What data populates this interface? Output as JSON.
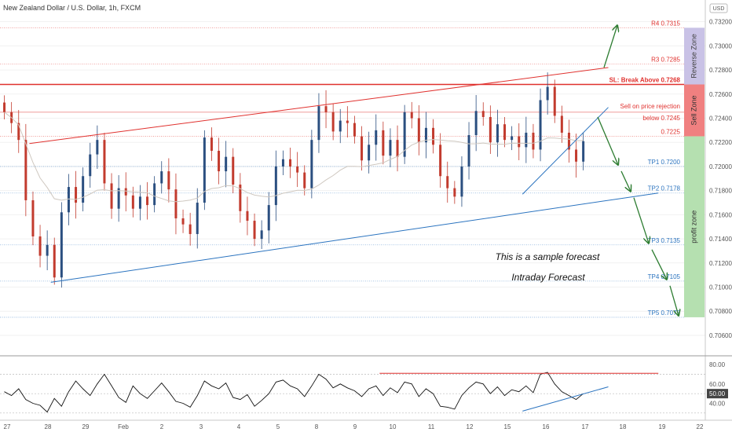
{
  "title": "New Zealand Dollar / U.S. Dollar, 1h, FXCM",
  "currency_badge": "USD",
  "colors": {
    "blue": "#2a73bf",
    "red": "#e0312e",
    "green": "#2e7d32",
    "candle_up": "#2b4f80",
    "candle_down": "#c23b2e",
    "reverse_zone": "#c9c2e6",
    "sell_zone": "#f08080",
    "profit_zone": "#b5e0b0"
  },
  "annotations": {
    "forecast_line1": "This is a sample forecast",
    "forecast_line2": "Intraday Forecast"
  },
  "zones": {
    "reverse": "Reverse Zone",
    "sell": "Sell Zone",
    "profit": "profit zone"
  },
  "chart_data": [
    {
      "type": "line",
      "series_style": "candlestick",
      "title": "New Zealand Dollar / U.S. Dollar, 1h, FXCM",
      "ylim": [
        0.7045,
        0.7338
      ],
      "yticks": [
        "0.73200",
        "0.73000",
        "0.72800",
        "0.72600",
        "0.72400",
        "0.72200",
        "0.72000",
        "0.71800",
        "0.71600",
        "0.71400",
        "0.71200",
        "0.71000",
        "0.70800",
        "0.70600"
      ],
      "x_ticks": [
        "27",
        "28",
        "29",
        "Feb",
        "2",
        "3",
        "4",
        "5",
        "8",
        "9",
        "10",
        "11",
        "12",
        "15",
        "16",
        "17",
        "18",
        "19",
        "22"
      ],
      "levels": [
        {
          "name": "R4",
          "label": "R4 0.7315",
          "value": 0.7315,
          "color": "red"
        },
        {
          "name": "R3",
          "label": "R3 0.7285",
          "value": 0.7285,
          "color": "red"
        },
        {
          "name": "SL",
          "label": "SL: Break Above 0.7268",
          "value": 0.7268,
          "color": "red",
          "bold": true
        },
        {
          "name": "Sell",
          "label_lines": [
            "Sell on price rejection",
            "below 0.7245"
          ],
          "value": 0.7245,
          "color": "red"
        },
        {
          "name": "R1",
          "label": "0.7225",
          "value": 0.7225,
          "color": "red"
        },
        {
          "name": "TP1",
          "label": "TP1 0.7200",
          "value": 0.72,
          "color": "blue"
        },
        {
          "name": "TP2",
          "label": "TP2 0.7178",
          "value": 0.7178,
          "color": "blue"
        },
        {
          "name": "TP3",
          "label": "TP3 0.7135",
          "value": 0.7135,
          "color": "blue"
        },
        {
          "name": "TP4",
          "label": "TP4 0.7105",
          "value": 0.7105,
          "color": "blue"
        },
        {
          "name": "TP5",
          "label": "TP5 0.7075",
          "value": 0.7075,
          "color": "blue"
        }
      ],
      "price_path": [
        0.7245,
        0.7236,
        0.7222,
        0.7172,
        0.7142,
        0.7126,
        0.7135,
        0.7108,
        0.7162,
        0.7183,
        0.717,
        0.7192,
        0.721,
        0.7222,
        0.7186,
        0.7165,
        0.7182,
        0.7176,
        0.7165,
        0.7175,
        0.7168,
        0.7186,
        0.7196,
        0.7181,
        0.7157,
        0.7152,
        0.7144,
        0.717,
        0.7224,
        0.7213,
        0.7196,
        0.7208,
        0.7185,
        0.7163,
        0.7155,
        0.714,
        0.7147,
        0.7168,
        0.72,
        0.7206,
        0.72,
        0.7195,
        0.7182,
        0.7222,
        0.725,
        0.7245,
        0.7229,
        0.7238,
        0.7236,
        0.7225,
        0.7205,
        0.7218,
        0.723,
        0.7209,
        0.7222,
        0.7208,
        0.7245,
        0.724,
        0.722,
        0.7232,
        0.7218,
        0.7192,
        0.7182,
        0.7175,
        0.72,
        0.7226,
        0.7246,
        0.7241,
        0.722,
        0.7235,
        0.7222,
        0.7225,
        0.7216,
        0.7228,
        0.7214,
        0.7255,
        0.7266,
        0.7242,
        0.7228,
        0.7214,
        0.7204,
        0.7221
      ],
      "forecast_path": [
        0.7245,
        0.72,
        0.7178,
        0.7135,
        0.7105,
        0.7075
      ],
      "trendlines": [
        {
          "name": "upper-channel",
          "color": "red",
          "from": [
            4,
            0.7219
          ],
          "to": [
            85,
            0.7282
          ]
        },
        {
          "name": "lower-channel",
          "color": "blue",
          "from": [
            7,
            0.7104
          ],
          "to": [
            92,
            0.7178
          ]
        },
        {
          "name": "short-uptrend",
          "color": "blue",
          "from": [
            73,
            0.7177
          ],
          "to": [
            85,
            0.7249
          ]
        }
      ]
    },
    {
      "type": "line",
      "title": "",
      "ylim": [
        25,
        85
      ],
      "yticks": [
        "80.00",
        "60.00",
        "50.00",
        "40.00"
      ],
      "reference_lines": [
        70,
        50,
        30
      ],
      "values": [
        52,
        48,
        55,
        44,
        40,
        38,
        31,
        45,
        37,
        52,
        63,
        55,
        48,
        60,
        70,
        58,
        46,
        41,
        58,
        50,
        45,
        53,
        61,
        52,
        42,
        40,
        36,
        48,
        63,
        58,
        55,
        61,
        46,
        44,
        49,
        37,
        43,
        50,
        62,
        64,
        58,
        55,
        47,
        58,
        70,
        65,
        56,
        60,
        56,
        53,
        47,
        55,
        58,
        48,
        56,
        51,
        62,
        60,
        47,
        55,
        50,
        37,
        36,
        34,
        48,
        56,
        62,
        60,
        50,
        57,
        48,
        54,
        52,
        58,
        51,
        70,
        72,
        60,
        52,
        48,
        44,
        50
      ],
      "trendlines": [
        {
          "name": "rsi-top",
          "color": "red",
          "from": [
            53,
            71
          ],
          "to": [
            92,
            71
          ]
        },
        {
          "name": "rsi-rising",
          "color": "blue",
          "from": [
            73,
            32
          ],
          "to": [
            85,
            57
          ]
        }
      ]
    }
  ]
}
